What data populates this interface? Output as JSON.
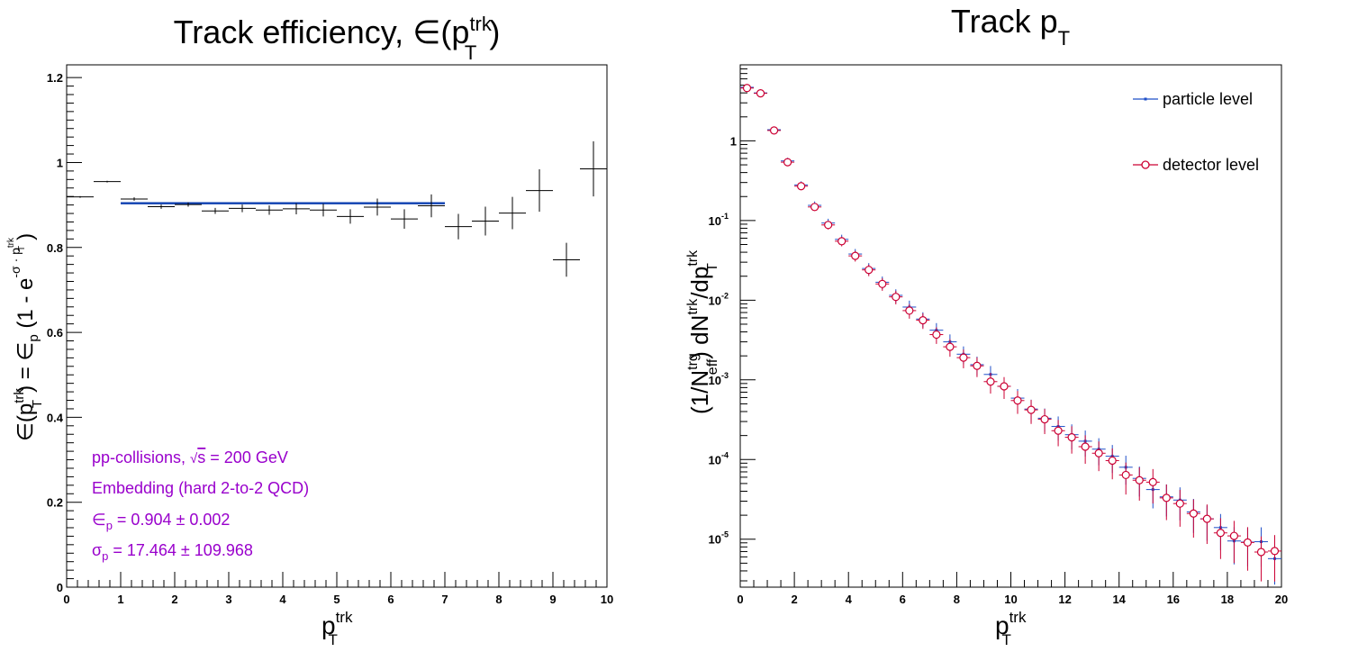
{
  "chart_data": [
    {
      "type": "scatter",
      "title": {
        "base": "Track efficiency, ∈(p",
        "sup": "trk",
        "sub": "T",
        "tail": ")"
      },
      "xlabel": {
        "base": "p",
        "sup": "trk",
        "sub": "T"
      },
      "ylabel": {
        "p1": "∈(p",
        "sup1": "trk",
        "sub1": "T",
        "p2": ") = ∈",
        "sub2": "p",
        "p3": " (1 - e",
        "expsup": "-σ · p",
        "expsup_sup": "trk",
        "expsup_sub": "T",
        "p4": ")"
      },
      "xlim": [
        0,
        10
      ],
      "ylim": [
        0,
        1.23
      ],
      "xticks": [
        "0",
        "1",
        "2",
        "3",
        "4",
        "5",
        "6",
        "7",
        "8",
        "9",
        "10"
      ],
      "yticks": [
        {
          "v": 0,
          "label": "0"
        },
        {
          "v": 0.2,
          "label": "0.2"
        },
        {
          "v": 0.4,
          "label": "0.4"
        },
        {
          "v": 0.6,
          "label": "0.6"
        },
        {
          "v": 0.8,
          "label": "0.8"
        },
        {
          "v": 1,
          "label": "1"
        },
        {
          "v": 1.2,
          "label": "1.2"
        }
      ],
      "points": [
        {
          "x": 0.25,
          "y": 0.919,
          "xerr": 0.25,
          "yerr": 0.002
        },
        {
          "x": 0.75,
          "y": 0.955,
          "xerr": 0.25,
          "yerr": 0.002
        },
        {
          "x": 1.25,
          "y": 0.914,
          "xerr": 0.25,
          "yerr": 0.004
        },
        {
          "x": 1.75,
          "y": 0.896,
          "xerr": 0.25,
          "yerr": 0.005
        },
        {
          "x": 2.25,
          "y": 0.901,
          "xerr": 0.25,
          "yerr": 0.005
        },
        {
          "x": 2.75,
          "y": 0.886,
          "xerr": 0.25,
          "yerr": 0.007
        },
        {
          "x": 3.25,
          "y": 0.892,
          "xerr": 0.25,
          "yerr": 0.009
        },
        {
          "x": 3.75,
          "y": 0.888,
          "xerr": 0.25,
          "yerr": 0.011
        },
        {
          "x": 4.25,
          "y": 0.891,
          "xerr": 0.25,
          "yerr": 0.013
        },
        {
          "x": 4.75,
          "y": 0.888,
          "xerr": 0.25,
          "yerr": 0.015
        },
        {
          "x": 5.25,
          "y": 0.873,
          "xerr": 0.25,
          "yerr": 0.017
        },
        {
          "x": 5.75,
          "y": 0.895,
          "xerr": 0.25,
          "yerr": 0.02
        },
        {
          "x": 6.25,
          "y": 0.867,
          "xerr": 0.25,
          "yerr": 0.023
        },
        {
          "x": 6.75,
          "y": 0.898,
          "xerr": 0.25,
          "yerr": 0.027
        },
        {
          "x": 7.25,
          "y": 0.849,
          "xerr": 0.25,
          "yerr": 0.03
        },
        {
          "x": 7.75,
          "y": 0.862,
          "xerr": 0.25,
          "yerr": 0.034
        },
        {
          "x": 8.25,
          "y": 0.881,
          "xerr": 0.25,
          "yerr": 0.038
        },
        {
          "x": 8.75,
          "y": 0.934,
          "xerr": 0.25,
          "yerr": 0.05
        },
        {
          "x": 9.25,
          "y": 0.771,
          "xerr": 0.25,
          "yerr": 0.04
        },
        {
          "x": 9.75,
          "y": 0.985,
          "xerr": 0.25,
          "yerr": 0.065
        }
      ],
      "fit": {
        "x": [
          1,
          7
        ],
        "y": 0.904,
        "color": "#0d3fb0"
      },
      "annotations": {
        "line1_pre": "pp-collisions, ",
        "line1_sqrt": "√",
        "line1_s": "s",
        "line1_post": " = 200 GeV",
        "line2": "Embedding (hard 2-to-2 QCD)",
        "line3_sym": "∈",
        "line3_sub": "p",
        "line3_val": " = 0.904 ± 0.002",
        "line4_sym": "σ",
        "line4_sub": "p",
        "line4_val": " = 17.464 ± 109.968"
      },
      "colors": {
        "data": "#000000",
        "annotation": "#9900cc"
      }
    },
    {
      "type": "scatter",
      "title": {
        "base": "Track p",
        "sub": "T"
      },
      "xlabel": {
        "base": "p",
        "sup": "trk",
        "sub": "T"
      },
      "ylabel": {
        "p1": "(1/N",
        "sup1": "trg",
        "sub1": "eff",
        "p2": ") dN",
        "sup2": "trk",
        "p3": "/dp",
        "sup3": "trk",
        "sub3": "T"
      },
      "log_y": true,
      "xlim": [
        0,
        20
      ],
      "ylim": [
        2.5e-06,
        9
      ],
      "xticks": [
        "0",
        "2",
        "4",
        "6",
        "8",
        "10",
        "12",
        "14",
        "16",
        "18",
        "20"
      ],
      "yticks": [
        {
          "v": 1,
          "base": "1",
          "exp": ""
        },
        {
          "v": 0.1,
          "base": "10",
          "exp": "-1"
        },
        {
          "v": 0.01,
          "base": "10",
          "exp": "-2"
        },
        {
          "v": 0.001,
          "base": "10",
          "exp": "-3"
        },
        {
          "v": 0.0001,
          "base": "10",
          "exp": "-4"
        },
        {
          "v": 1e-05,
          "base": "10",
          "exp": "-5"
        }
      ],
      "legend": {
        "placement": "top-right",
        "entries": [
          "particle level",
          "detector level"
        ]
      },
      "series": [
        {
          "name": "particle level",
          "color": "#1f4fc8",
          "marker": "dot",
          "x": [
            0.25,
            0.75,
            1.25,
            1.75,
            2.25,
            2.75,
            3.25,
            3.75,
            4.25,
            4.75,
            5.25,
            5.75,
            6.25,
            6.75,
            7.25,
            7.75,
            8.25,
            8.75,
            9.25,
            9.75,
            10.25,
            10.75,
            11.25,
            11.75,
            12.25,
            12.75,
            13.25,
            13.75,
            14.25,
            14.75,
            15.25,
            15.75,
            16.25,
            16.75,
            17.25,
            17.75,
            18.25,
            18.75,
            19.25,
            19.75
          ],
          "y": [
            4.7,
            4.0,
            1.38,
            0.56,
            0.28,
            0.155,
            0.093,
            0.058,
            0.038,
            0.025,
            0.0168,
            0.0115,
            0.0082,
            0.0058,
            0.0042,
            0.003,
            0.0021,
            0.00155,
            0.00117,
            0.00083,
            0.00059,
            0.00043,
            0.00033,
            0.00026,
            0.000205,
            0.00017,
            0.000135,
            0.00011,
            8e-05,
            5.8e-05,
            4.2e-05,
            3.4e-05,
            3.1e-05,
            2.2e-05,
            1.8e-05,
            1.4e-05,
            9.5e-06,
            9.2e-06,
            9.3e-06,
            5.7e-06
          ]
        },
        {
          "name": "detector level",
          "color": "#cc0033",
          "marker": "open-circle",
          "x": [
            0.25,
            0.75,
            1.25,
            1.75,
            2.25,
            2.75,
            3.25,
            3.75,
            4.25,
            4.75,
            5.25,
            5.75,
            6.25,
            6.75,
            7.25,
            7.75,
            8.25,
            8.75,
            9.25,
            9.75,
            10.25,
            10.75,
            11.25,
            11.75,
            12.25,
            12.75,
            13.25,
            13.75,
            14.25,
            14.75,
            15.25,
            15.75,
            16.25,
            16.75,
            17.25,
            17.75,
            18.25,
            18.75,
            19.25,
            19.75
          ],
          "y": [
            4.6,
            3.95,
            1.35,
            0.54,
            0.27,
            0.148,
            0.088,
            0.055,
            0.036,
            0.024,
            0.016,
            0.011,
            0.0074,
            0.0056,
            0.0037,
            0.0026,
            0.0019,
            0.0015,
            0.00095,
            0.00083,
            0.00055,
            0.00042,
            0.00032,
            0.00023,
            0.00019,
            0.000145,
            0.00012,
            9.7e-05,
            6.4e-05,
            5.5e-05,
            5.2e-05,
            3.3e-05,
            2.8e-05,
            2.1e-05,
            1.8e-05,
            1.2e-05,
            1.1e-05,
            9.1e-06,
            6.9e-06,
            7.1e-06
          ]
        }
      ]
    }
  ]
}
